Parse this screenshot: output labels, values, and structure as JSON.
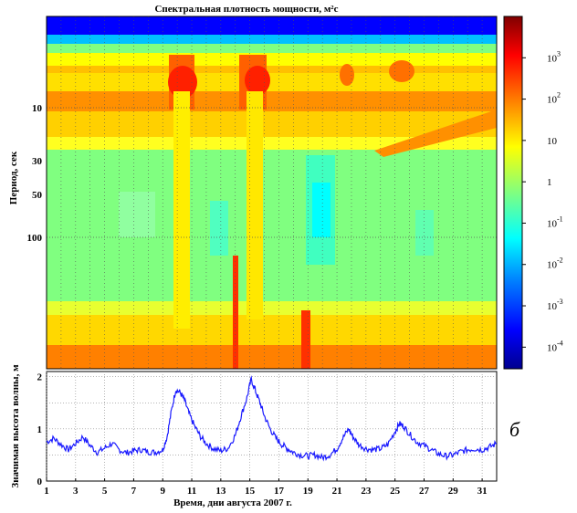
{
  "chart_data": [
    {
      "type": "heatmap",
      "title": "Спектральная плотность мощности, м²с",
      "ylabel": "Период, сек",
      "y_ticks": [
        "10",
        "30",
        "50",
        "100"
      ],
      "y_scale": "log",
      "x_range_days": [
        1,
        32
      ],
      "colorbar": {
        "scale": "log",
        "range": [
          3e-05,
          10000
        ],
        "ticks": [
          {
            "base": "10",
            "exp": "3"
          },
          {
            "base": "10",
            "exp": "2"
          },
          {
            "base": "10",
            "exp": ""
          },
          {
            "base": "1",
            "exp": ""
          },
          {
            "base": "10",
            "exp": "-1"
          },
          {
            "base": "10",
            "exp": "-2"
          },
          {
            "base": "10",
            "exp": "-3"
          },
          {
            "base": "10",
            "exp": "-4"
          }
        ],
        "colors": [
          "#00008f",
          "#0000ff",
          "#0080ff",
          "#00ffff",
          "#80ff80",
          "#ffff00",
          "#ff8000",
          "#ff0000",
          "#800000"
        ]
      },
      "energy_events_days": [
        10.2,
        15.0,
        19.5,
        22.0,
        25.5
      ]
    },
    {
      "type": "line",
      "ylabel": "Значимая высота волны, м",
      "xlabel": "Время, дни августа 2007 г.",
      "x_ticks": [
        "1",
        "3",
        "5",
        "7",
        "9",
        "11",
        "13",
        "15",
        "17",
        "19",
        "21",
        "23",
        "25",
        "27",
        "29",
        "31"
      ],
      "y_ticks": [
        "0",
        "1",
        "2"
      ],
      "xlim": [
        1,
        32
      ],
      "ylim": [
        0,
        2.1
      ],
      "grid": true,
      "color": "#1a1aff",
      "x": [
        1,
        1.5,
        2,
        2.5,
        3,
        3.5,
        4,
        4.5,
        5,
        5.5,
        6,
        6.5,
        7,
        7.5,
        8,
        8.5,
        9,
        9.3,
        9.6,
        9.9,
        10.2,
        10.5,
        10.8,
        11.2,
        11.6,
        12,
        12.5,
        13,
        13.5,
        14,
        14.4,
        14.8,
        15.1,
        15.4,
        15.7,
        16,
        16.4,
        16.8,
        17.2,
        17.6,
        18,
        18.5,
        19,
        19.5,
        20,
        20.5,
        21,
        21.4,
        21.8,
        22.1,
        22.5,
        23,
        23.5,
        24,
        24.5,
        25,
        25.3,
        25.6,
        26,
        26.5,
        27,
        27.5,
        28,
        28.5,
        29,
        29.5,
        30,
        30.5,
        31,
        31.5,
        32
      ],
      "y": [
        0.75,
        0.82,
        0.7,
        0.6,
        0.72,
        0.85,
        0.68,
        0.55,
        0.63,
        0.72,
        0.6,
        0.54,
        0.58,
        0.6,
        0.56,
        0.55,
        0.6,
        0.85,
        1.35,
        1.75,
        1.7,
        1.55,
        1.3,
        1.05,
        0.85,
        0.72,
        0.62,
        0.58,
        0.63,
        0.88,
        1.25,
        1.6,
        1.95,
        1.72,
        1.5,
        1.25,
        1.0,
        0.82,
        0.7,
        0.62,
        0.55,
        0.5,
        0.48,
        0.5,
        0.45,
        0.5,
        0.62,
        0.82,
        1.0,
        0.85,
        0.7,
        0.62,
        0.6,
        0.62,
        0.7,
        0.95,
        1.1,
        1.05,
        0.9,
        0.75,
        0.68,
        0.6,
        0.52,
        0.48,
        0.5,
        0.56,
        0.6,
        0.62,
        0.6,
        0.65,
        0.72
      ]
    }
  ],
  "panel_label": "б"
}
